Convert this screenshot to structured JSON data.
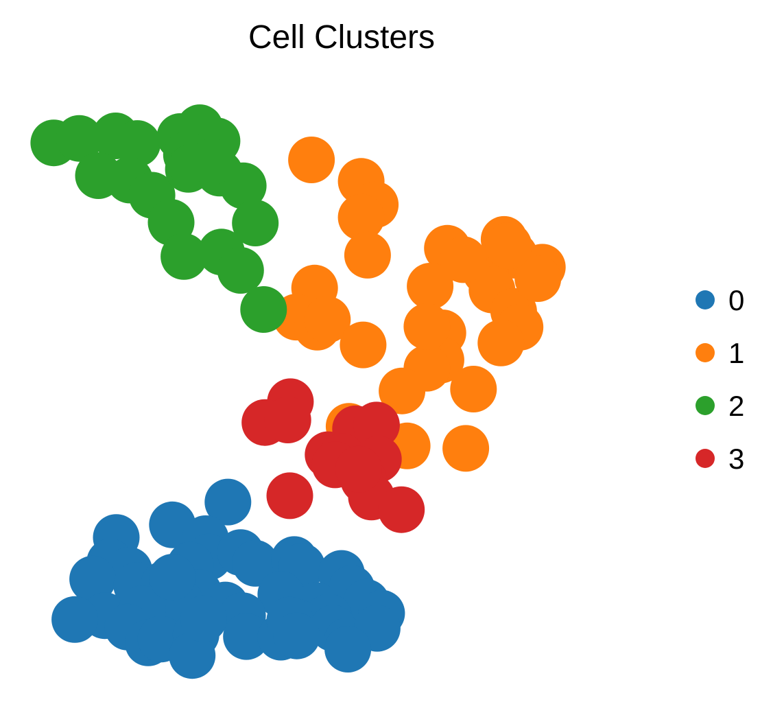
{
  "chart_data": {
    "type": "scatter",
    "title": "Cell Clusters",
    "xlabel": "",
    "ylabel": "",
    "xlim": [
      0,
      100
    ],
    "ylim": [
      0,
      100
    ],
    "grid": false,
    "axes_visible": false,
    "legend_position": "right",
    "series": [
      {
        "name": "0",
        "color": "#1f77b4",
        "points": [
          [
            32.5,
            30.8
          ],
          [
            23.8,
            27.2
          ],
          [
            15.0,
            25.2
          ],
          [
            14.0,
            21.3
          ],
          [
            17.0,
            20.0
          ],
          [
            11.3,
            18.6
          ],
          [
            18.2,
            17.6
          ],
          [
            22.5,
            17.8
          ],
          [
            29.0,
            25.0
          ],
          [
            29.5,
            22.1
          ],
          [
            26.6,
            20.8
          ],
          [
            34.5,
            22.8
          ],
          [
            36.8,
            21.1
          ],
          [
            42.9,
            21.7
          ],
          [
            44.1,
            20.6
          ],
          [
            50.3,
            19.5
          ],
          [
            51.9,
            17.1
          ],
          [
            54.2,
            14.9
          ],
          [
            40.8,
            16.2
          ],
          [
            46.4,
            14.4
          ],
          [
            48.3,
            12.6
          ],
          [
            27.9,
            16.5
          ],
          [
            25.0,
            15.0
          ],
          [
            32.1,
            14.5
          ],
          [
            13.2,
            12.8
          ],
          [
            19.1,
            13.9
          ],
          [
            16.8,
            11.0
          ],
          [
            8.5,
            12.2
          ],
          [
            20.0,
            8.5
          ],
          [
            22.0,
            9.1
          ],
          [
            27.5,
            9.8
          ],
          [
            26.9,
            6.5
          ],
          [
            34.8,
            12.8
          ],
          [
            35.4,
            9.5
          ],
          [
            40.8,
            9.4
          ],
          [
            43.5,
            11.7
          ],
          [
            42.2,
            12.1
          ],
          [
            49.0,
            10.8
          ],
          [
            51.2,
            8.8
          ],
          [
            56.6,
            13.2
          ],
          [
            55.9,
            10.8
          ],
          [
            43.3,
            9.6
          ],
          [
            51.3,
            7.5
          ],
          [
            28.7,
            12.3
          ],
          [
            23.8,
            18.9
          ]
        ]
      },
      {
        "name": "1",
        "color": "#ff7f0e",
        "points": [
          [
            45.6,
            85.0
          ],
          [
            53.4,
            81.6
          ],
          [
            55.6,
            77.9
          ],
          [
            53.4,
            75.9
          ],
          [
            54.4,
            69.9
          ],
          [
            46.1,
            64.7
          ],
          [
            43.2,
            60.1
          ],
          [
            46.5,
            58.5
          ],
          [
            48.1,
            59.7
          ],
          [
            53.7,
            55.7
          ],
          [
            66.9,
            71.0
          ],
          [
            64.2,
            65.0
          ],
          [
            75.8,
            72.4
          ],
          [
            77.4,
            69.9
          ],
          [
            81.8,
            68.0
          ],
          [
            72.9,
            67.3
          ],
          [
            73.9,
            64.4
          ],
          [
            77.3,
            61.0
          ],
          [
            78.3,
            58.5
          ],
          [
            81.1,
            66.2
          ],
          [
            66.2,
            57.6
          ],
          [
            65.9,
            53.3
          ],
          [
            63.7,
            52.0
          ],
          [
            71.0,
            48.7
          ],
          [
            59.8,
            48.4
          ],
          [
            51.5,
            42.8
          ],
          [
            60.6,
            39.7
          ],
          [
            69.8,
            39.3
          ],
          [
            69.4,
            69.2
          ],
          [
            76.5,
            71.4
          ],
          [
            75.3,
            56.0
          ],
          [
            63.7,
            58.6
          ]
        ]
      },
      {
        "name": "2",
        "color": "#2ca02c",
        "points": [
          [
            5.2,
            87.7
          ],
          [
            9.2,
            88.4
          ],
          [
            14.9,
            88.8
          ],
          [
            18.3,
            87.6
          ],
          [
            12.2,
            82.5
          ],
          [
            17.1,
            81.8
          ],
          [
            20.6,
            79.4
          ],
          [
            25.0,
            88.7
          ],
          [
            28.1,
            90.1
          ],
          [
            30.8,
            88.0
          ],
          [
            26.0,
            85.8
          ],
          [
            26.3,
            83.5
          ],
          [
            31.2,
            82.9
          ],
          [
            34.9,
            80.9
          ],
          [
            36.8,
            75.0
          ],
          [
            23.6,
            75.1
          ],
          [
            25.6,
            69.7
          ],
          [
            31.5,
            70.4
          ],
          [
            34.5,
            67.5
          ],
          [
            38.1,
            61.3
          ],
          [
            26.9,
            83.9
          ],
          [
            30.0,
            84.7
          ]
        ]
      },
      {
        "name": "3",
        "color": "#d62728",
        "points": [
          [
            42.3,
            46.7
          ],
          [
            38.3,
            43.4
          ],
          [
            41.9,
            43.8
          ],
          [
            52.5,
            42.4
          ],
          [
            55.8,
            43.0
          ],
          [
            48.2,
            38.3
          ],
          [
            50.4,
            38.0
          ],
          [
            56.1,
            37.6
          ],
          [
            53.8,
            34.3
          ],
          [
            55.0,
            31.6
          ],
          [
            59.7,
            29.6
          ],
          [
            42.2,
            31.8
          ],
          [
            49.3,
            36.7
          ],
          [
            53.0,
            36.0
          ]
        ]
      }
    ],
    "legend": [
      "0",
      "1",
      "2",
      "3"
    ]
  }
}
